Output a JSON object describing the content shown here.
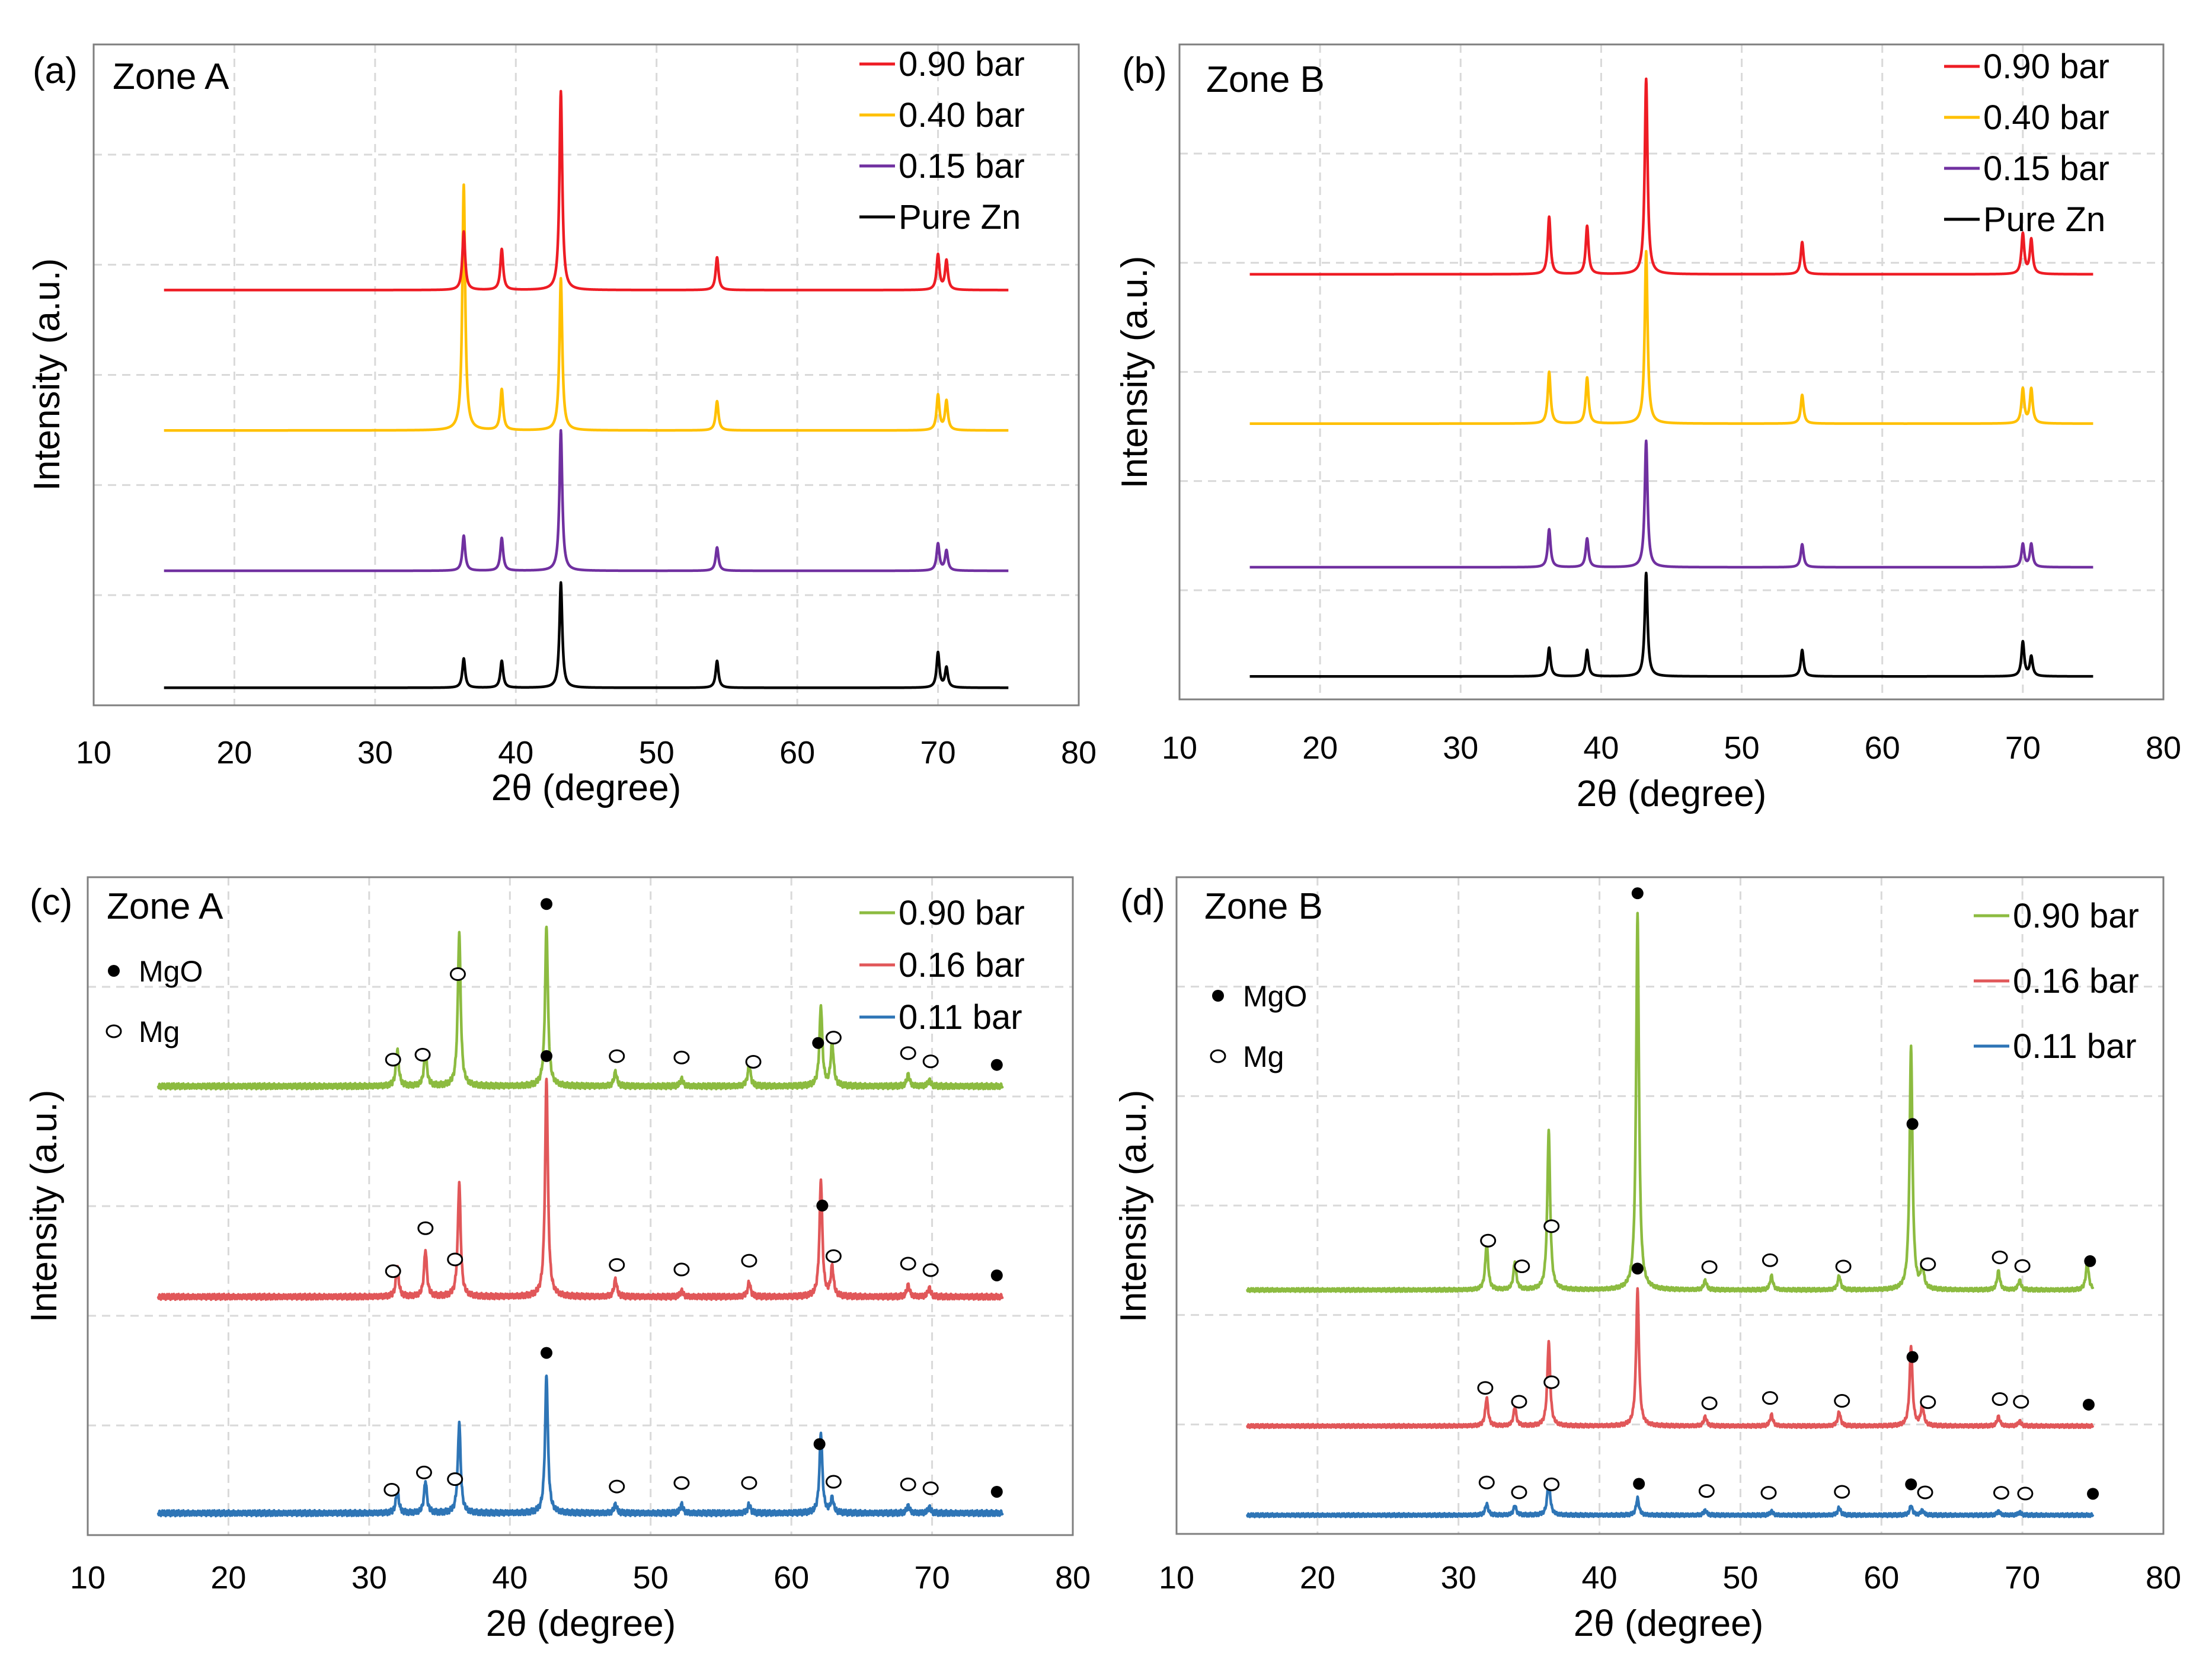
{
  "chart_data": [
    {
      "panel": "(a)",
      "zone": "Zone A",
      "type": "line",
      "pattern": "xrd",
      "xlabel": "2θ (degree)",
      "ylabel": "Intensity (a.u.)",
      "xlim": [
        10,
        80
      ],
      "xticks": [
        10,
        20,
        30,
        40,
        50,
        60,
        70,
        80
      ],
      "grid": true,
      "legend_position": "top-right",
      "x_range": [
        15,
        75
      ],
      "series": [
        {
          "name": "Pure Zn",
          "color": "#000000",
          "offset": 0.0,
          "peaks": [
            [
              36.3,
              0.25
            ],
            [
              39.0,
              0.23
            ],
            [
              43.2,
              0.9
            ],
            [
              54.3,
              0.23
            ],
            [
              70.0,
              0.3
            ],
            [
              70.6,
              0.17
            ]
          ]
        },
        {
          "name": "0.15 bar",
          "color": "#7030a0",
          "offset": 1.0,
          "peaks": [
            [
              36.3,
              0.3
            ],
            [
              39.0,
              0.28
            ],
            [
              43.2,
              1.2
            ],
            [
              54.3,
              0.2
            ],
            [
              70.0,
              0.23
            ],
            [
              70.6,
              0.17
            ]
          ]
        },
        {
          "name": "0.40 bar",
          "color": "#ffc000",
          "offset": 2.2,
          "peaks": [
            [
              36.3,
              2.1
            ],
            [
              39.0,
              0.35
            ],
            [
              43.2,
              1.3
            ],
            [
              54.3,
              0.25
            ],
            [
              70.0,
              0.3
            ],
            [
              70.6,
              0.25
            ]
          ]
        },
        {
          "name": "0.90 bar",
          "color": "#ee1c24",
          "offset": 3.4,
          "peaks": [
            [
              36.3,
              0.5
            ],
            [
              39.0,
              0.35
            ],
            [
              43.2,
              1.7
            ],
            [
              54.3,
              0.28
            ],
            [
              70.0,
              0.3
            ],
            [
              70.6,
              0.25
            ]
          ]
        }
      ],
      "ylim": [
        -0.15,
        5.5
      ]
    },
    {
      "panel": "(b)",
      "zone": "Zone B",
      "type": "line",
      "pattern": "xrd",
      "xlabel": "2θ (degree)",
      "ylabel": "Intensity (a.u.)",
      "xlim": [
        10,
        80
      ],
      "xticks": [
        10,
        20,
        30,
        40,
        50,
        60,
        70,
        80
      ],
      "grid": true,
      "legend_position": "top-right",
      "x_range": [
        15,
        75
      ],
      "series": [
        {
          "name": "Pure Zn",
          "color": "#000000",
          "offset": 0.0,
          "peaks": [
            [
              36.3,
              0.25
            ],
            [
              39.0,
              0.23
            ],
            [
              43.2,
              0.9
            ],
            [
              54.3,
              0.23
            ],
            [
              70.0,
              0.3
            ],
            [
              70.6,
              0.17
            ]
          ]
        },
        {
          "name": "0.15 bar",
          "color": "#7030a0",
          "offset": 0.95,
          "peaks": [
            [
              36.3,
              0.33
            ],
            [
              39.0,
              0.25
            ],
            [
              43.2,
              1.1
            ],
            [
              54.3,
              0.2
            ],
            [
              70.0,
              0.2
            ],
            [
              70.6,
              0.2
            ]
          ]
        },
        {
          "name": "0.40 bar",
          "color": "#ffc000",
          "offset": 2.2,
          "peaks": [
            [
              36.3,
              0.45
            ],
            [
              39.0,
              0.4
            ],
            [
              43.2,
              1.5
            ],
            [
              54.3,
              0.25
            ],
            [
              70.0,
              0.3
            ],
            [
              70.6,
              0.3
            ]
          ]
        },
        {
          "name": "0.90 bar",
          "color": "#ee1c24",
          "offset": 3.5,
          "peaks": [
            [
              36.3,
              0.5
            ],
            [
              39.0,
              0.42
            ],
            [
              43.2,
              1.7
            ],
            [
              54.3,
              0.28
            ],
            [
              70.0,
              0.35
            ],
            [
              70.6,
              0.3
            ]
          ]
        }
      ],
      "ylim": [
        -0.2,
        5.5
      ]
    },
    {
      "panel": "(c)",
      "zone": "Zone A",
      "type": "line",
      "pattern": "xrd",
      "xlabel": "2θ (degree)",
      "ylabel": "Intensity (a.u.)",
      "xlim": [
        10,
        80
      ],
      "xticks": [
        10,
        20,
        30,
        40,
        50,
        60,
        70,
        80
      ],
      "grid": true,
      "legend_position": "top-right",
      "x_range": [
        15,
        75
      ],
      "marker_legend": [
        {
          "symbol": "filled",
          "label": "MgO"
        },
        {
          "symbol": "open",
          "label": "Mg"
        }
      ],
      "series": [
        {
          "name": "0.11 bar",
          "color": "#2e75b6",
          "offset": 0.0,
          "peaks": [
            [
              32.0,
              0.16
            ],
            [
              34.0,
              0.22
            ],
            [
              36.4,
              0.62
            ],
            [
              42.6,
              0.95
            ],
            [
              47.5,
              0.06
            ],
            [
              52.2,
              0.06
            ],
            [
              57.0,
              0.06
            ],
            [
              62.1,
              0.55
            ],
            [
              62.9,
              0.1
            ],
            [
              68.3,
              0.05
            ],
            [
              69.8,
              0.04
            ]
          ]
        },
        {
          "name": "0.16 bar",
          "color": "#e15759",
          "offset": 1.48,
          "peaks": [
            [
              32.0,
              0.2
            ],
            [
              34.0,
              0.32
            ],
            [
              36.4,
              0.78
            ],
            [
              42.6,
              1.5
            ],
            [
              47.5,
              0.12
            ],
            [
              52.2,
              0.04
            ],
            [
              57.0,
              0.1
            ],
            [
              62.1,
              0.8
            ],
            [
              62.9,
              0.2
            ],
            [
              68.3,
              0.08
            ],
            [
              69.8,
              0.06
            ]
          ]
        },
        {
          "name": "0.90 bar",
          "color": "#8cbb40",
          "offset": 2.92,
          "peaks": [
            [
              32.0,
              0.25
            ],
            [
              34.0,
              0.25
            ],
            [
              36.4,
              1.05
            ],
            [
              42.6,
              1.1
            ],
            [
              47.5,
              0.1
            ],
            [
              52.2,
              0.05
            ],
            [
              57.0,
              0.15
            ],
            [
              62.1,
              0.55
            ],
            [
              62.9,
              0.3
            ],
            [
              68.3,
              0.08
            ],
            [
              69.8,
              0.04
            ]
          ]
        }
      ],
      "annotations": [
        {
          "series": "0.11 bar",
          "symbol": "open",
          "x": [
            31.6,
            33.9,
            36.1,
            47.6,
            52.2,
            57.0,
            63.0,
            68.3,
            69.9
          ]
        },
        {
          "series": "0.11 bar",
          "symbol": "filled",
          "x": [
            42.6,
            62.0,
            74.6
          ]
        },
        {
          "series": "0.16 bar",
          "symbol": "open",
          "x": [
            31.7,
            34.0,
            36.1,
            47.6,
            52.2,
            57.0,
            63.0,
            68.3,
            69.9
          ]
        },
        {
          "series": "0.16 bar",
          "symbol": "filled",
          "x": [
            42.6,
            62.2,
            74.6
          ]
        },
        {
          "series": "0.90 bar",
          "symbol": "open",
          "x": [
            31.7,
            33.8,
            36.3,
            47.6,
            52.2,
            57.3,
            63.0,
            68.3,
            69.9
          ]
        },
        {
          "series": "0.90 bar",
          "symbol": "filled",
          "x": [
            42.6,
            61.9,
            74.6
          ]
        }
      ],
      "ylim": [
        -0.15,
        4.35
      ]
    },
    {
      "panel": "(d)",
      "zone": "Zone B",
      "type": "line",
      "pattern": "xrd",
      "xlabel": "2θ (degree)",
      "ylabel": "Intensity (a.u.)",
      "xlim": [
        10,
        80
      ],
      "xticks": [
        10,
        20,
        30,
        40,
        50,
        60,
        70,
        80
      ],
      "grid": true,
      "legend_position": "top-right",
      "x_range": [
        15,
        75
      ],
      "marker_legend": [
        {
          "symbol": "filled",
          "label": "MgO"
        },
        {
          "symbol": "open",
          "label": "Mg"
        }
      ],
      "series": [
        {
          "name": "0.11 bar",
          "color": "#2e75b6",
          "offset": 0.0,
          "peaks": [
            [
              32.0,
              0.12
            ],
            [
              34.0,
              0.1
            ],
            [
              36.4,
              0.38
            ],
            [
              42.7,
              0.18
            ],
            [
              47.5,
              0.05
            ],
            [
              52.2,
              0.04
            ],
            [
              57.0,
              0.08
            ],
            [
              62.1,
              0.1
            ],
            [
              62.9,
              0.05
            ],
            [
              68.3,
              0.04
            ],
            [
              69.8,
              0.03
            ]
          ]
        },
        {
          "name": "0.16 bar",
          "color": "#e15759",
          "offset": 0.95,
          "peaks": [
            [
              32.0,
              0.3
            ],
            [
              34.0,
              0.2
            ],
            [
              36.4,
              0.9
            ],
            [
              42.7,
              1.45
            ],
            [
              47.5,
              0.1
            ],
            [
              52.2,
              0.12
            ],
            [
              57.0,
              0.15
            ],
            [
              62.1,
              0.85
            ],
            [
              62.9,
              0.22
            ],
            [
              68.3,
              0.1
            ],
            [
              69.8,
              0.05
            ]
          ]
        },
        {
          "name": "0.90 bar",
          "color": "#8cbb40",
          "offset": 2.4,
          "peaks": [
            [
              32.0,
              0.5
            ],
            [
              34.0,
              0.3
            ],
            [
              36.4,
              1.7
            ],
            [
              42.7,
              4.0
            ],
            [
              47.5,
              0.1
            ],
            [
              52.2,
              0.15
            ],
            [
              57.0,
              0.15
            ],
            [
              62.1,
              2.6
            ],
            [
              62.9,
              0.25
            ],
            [
              68.3,
              0.2
            ],
            [
              69.8,
              0.1
            ],
            [
              74.6,
              0.3
            ]
          ]
        }
      ],
      "annotations": [
        {
          "series": "0.11 bar",
          "symbol": "open",
          "x": [
            32.0,
            34.3,
            36.6,
            47.6,
            52.0,
            57.2,
            63.1,
            68.5,
            70.2
          ]
        },
        {
          "series": "0.11 bar",
          "symbol": "filled",
          "x": [
            42.8,
            62.1,
            75.0
          ]
        },
        {
          "series": "0.16 bar",
          "symbol": "open",
          "x": [
            31.9,
            34.3,
            36.6,
            47.8,
            52.1,
            57.2,
            63.3,
            68.4,
            69.9
          ]
        },
        {
          "series": "0.16 bar",
          "symbol": "filled",
          "x": [
            42.7,
            62.2,
            74.7
          ]
        },
        {
          "series": "0.90 bar",
          "symbol": "open",
          "x": [
            32.1,
            34.5,
            36.6,
            47.8,
            52.1,
            57.3,
            63.3,
            68.4,
            70.0
          ]
        },
        {
          "series": "0.90 bar",
          "symbol": "filled",
          "x": [
            42.7,
            62.2,
            74.8
          ]
        }
      ],
      "ylim": [
        -0.2,
        6.8
      ]
    }
  ]
}
